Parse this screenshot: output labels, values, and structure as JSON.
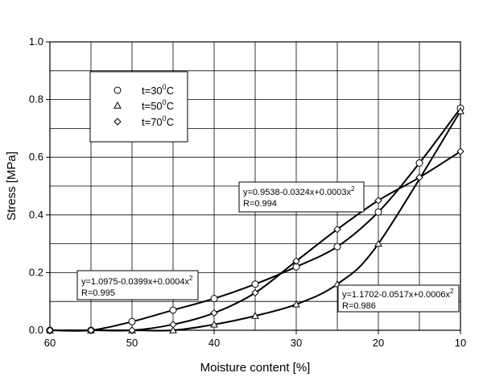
{
  "chart_data": {
    "type": "line",
    "xlabel": "Moisture content [%]",
    "ylabel": "Stress [MPa]",
    "xlim": [
      60,
      10
    ],
    "ylim": [
      0,
      1.0
    ],
    "x_reversed": true,
    "grid": true,
    "xticks": [
      "60",
      "50",
      "40",
      "30",
      "20",
      "10"
    ],
    "yticks": [
      "0.0",
      "0.2",
      "0.4",
      "0.6",
      "0.8",
      "1.0"
    ],
    "legend_placement": "top-left",
    "series": [
      {
        "name": "t=30⁰C",
        "marker": "circle",
        "x": [
          60,
          55,
          50,
          45,
          40,
          35,
          30,
          25,
          20,
          15,
          10
        ],
        "y": [
          0.0,
          0.0,
          0.03,
          0.07,
          0.11,
          0.16,
          0.22,
          0.29,
          0.41,
          0.58,
          0.77
        ],
        "equation": "y=0.9538-0.0324x+0.0003x²",
        "r": "R=0.994"
      },
      {
        "name": "t=50⁰C",
        "marker": "triangle",
        "x": [
          60,
          55,
          50,
          45,
          40,
          35,
          30,
          25,
          20,
          10
        ],
        "y": [
          0.0,
          0.0,
          0.0,
          0.0,
          0.02,
          0.05,
          0.09,
          0.16,
          0.3,
          0.76
        ],
        "equation": "y=1.1702-0.0517x+0.0006x²",
        "r": "R=0.986"
      },
      {
        "name": "t=70⁰C",
        "marker": "diamond",
        "x": [
          60,
          55,
          50,
          45,
          40,
          35,
          30,
          25,
          20,
          15,
          10
        ],
        "y": [
          0.0,
          0.0,
          0.0,
          0.02,
          0.06,
          0.13,
          0.24,
          0.35,
          0.45,
          0.53,
          0.62
        ],
        "equation": "y=1.0975-0.0399x+0.0004x²",
        "r": "R=0.995"
      }
    ],
    "legend": {
      "entries": [
        {
          "text": "t=30",
          "sup": "0",
          "unit": "C"
        },
        {
          "text": "t=50",
          "sup": "0",
          "unit": "C"
        },
        {
          "text": "t=70",
          "sup": "0",
          "unit": "C"
        }
      ]
    },
    "annotations": [
      {
        "eq_main": "y=0.9538-0.0324x+0.0003x",
        "eq_sup": "2",
        "r": "R=0.994"
      },
      {
        "eq_main": "y=1.0975-0.0399x+0.0004x",
        "eq_sup": "2",
        "r": "R=0.995"
      },
      {
        "eq_main": "y=1.1702-0.0517x+0.0006x",
        "eq_sup": "2",
        "r": "R=0.986"
      }
    ]
  }
}
